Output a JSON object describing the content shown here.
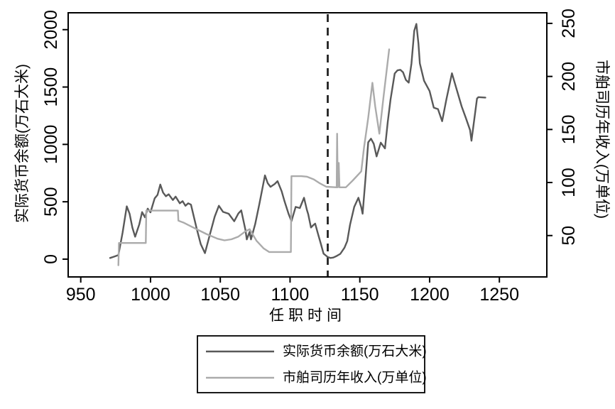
{
  "figure": {
    "background": "#ffffff"
  },
  "chart_data": {
    "type": "line",
    "title": "",
    "x_axis": {
      "label": "任职时间",
      "ticks": [
        950,
        1000,
        1050,
        1100,
        1150,
        1200,
        1250
      ],
      "range": [
        941,
        1284
      ]
    },
    "y_left": {
      "label": "实际货币余额(万石大米)",
      "ticks": [
        0,
        500,
        1000,
        1500,
        2000
      ],
      "range": [
        -155,
        2147
      ]
    },
    "y_right": {
      "label": "市舶司历年收入(万单位)",
      "ticks": [
        50,
        100,
        150,
        200,
        250
      ],
      "range": [
        11,
        260
      ]
    },
    "reference_line": {
      "x": 1127,
      "style": "dashed",
      "color": "#222222"
    },
    "grid": "off",
    "legend_position": "bottom",
    "series": [
      {
        "name": "实际货币余额(万石大米)",
        "axis": "left",
        "color": "#595959",
        "points": [
          [
            971,
            10
          ],
          [
            974,
            22
          ],
          [
            977,
            35
          ],
          [
            980,
            230
          ],
          [
            983,
            460
          ],
          [
            985,
            395
          ],
          [
            987,
            275
          ],
          [
            989,
            195
          ],
          [
            992,
            305
          ],
          [
            994,
            410
          ],
          [
            996,
            365
          ],
          [
            998,
            440
          ],
          [
            1000,
            408
          ],
          [
            1003,
            530
          ],
          [
            1005,
            560
          ],
          [
            1007,
            650
          ],
          [
            1009,
            580
          ],
          [
            1011,
            548
          ],
          [
            1013,
            565
          ],
          [
            1016,
            515
          ],
          [
            1018,
            545
          ],
          [
            1021,
            487
          ],
          [
            1023,
            505
          ],
          [
            1025,
            465
          ],
          [
            1027,
            487
          ],
          [
            1029,
            475
          ],
          [
            1033,
            270
          ],
          [
            1036,
            130
          ],
          [
            1039,
            52
          ],
          [
            1043,
            235
          ],
          [
            1046,
            370
          ],
          [
            1049,
            465
          ],
          [
            1052,
            412
          ],
          [
            1056,
            396
          ],
          [
            1060,
            330
          ],
          [
            1063,
            398
          ],
          [
            1065,
            425
          ],
          [
            1068,
            255
          ],
          [
            1069,
            172
          ],
          [
            1071,
            238
          ],
          [
            1072,
            172
          ],
          [
            1075,
            305
          ],
          [
            1078,
            480
          ],
          [
            1082,
            730
          ],
          [
            1084,
            662
          ],
          [
            1086,
            630
          ],
          [
            1089,
            655
          ],
          [
            1091,
            680
          ],
          [
            1094,
            592
          ],
          [
            1096,
            505
          ],
          [
            1099,
            392
          ],
          [
            1101,
            330
          ],
          [
            1104,
            455
          ],
          [
            1107,
            445
          ],
          [
            1110,
            535
          ],
          [
            1112,
            432
          ],
          [
            1113,
            392
          ],
          [
            1115,
            276
          ],
          [
            1117,
            300
          ],
          [
            1118,
            310
          ],
          [
            1120,
            222
          ],
          [
            1122,
            136
          ],
          [
            1124,
            48
          ],
          [
            1127,
            18
          ],
          [
            1129,
            10
          ],
          [
            1131,
            14
          ],
          [
            1133,
            25
          ],
          [
            1136,
            46
          ],
          [
            1139,
            100
          ],
          [
            1141,
            158
          ],
          [
            1143,
            300
          ],
          [
            1146,
            455
          ],
          [
            1149,
            535
          ],
          [
            1151,
            452
          ],
          [
            1152,
            396
          ],
          [
            1154,
            690
          ],
          [
            1156,
            1018
          ],
          [
            1158,
            1050
          ],
          [
            1160,
            1005
          ],
          [
            1162,
            895
          ],
          [
            1165,
            1015
          ],
          [
            1168,
            965
          ],
          [
            1170,
            1195
          ],
          [
            1172,
            1390
          ],
          [
            1175,
            1618
          ],
          [
            1177,
            1645
          ],
          [
            1179,
            1650
          ],
          [
            1181,
            1628
          ],
          [
            1183,
            1562
          ],
          [
            1185,
            1538
          ],
          [
            1187,
            1705
          ],
          [
            1189,
            1990
          ],
          [
            1190.5,
            2050
          ],
          [
            1192,
            1880
          ],
          [
            1193,
            1705
          ],
          [
            1196,
            1555
          ],
          [
            1200,
            1465
          ],
          [
            1203,
            1320
          ],
          [
            1206,
            1308
          ],
          [
            1209,
            1202
          ],
          [
            1212,
            1390
          ],
          [
            1216,
            1620
          ],
          [
            1219,
            1495
          ],
          [
            1223,
            1330
          ],
          [
            1226,
            1230
          ],
          [
            1229,
            1125
          ],
          [
            1230,
            1032
          ],
          [
            1234,
            1400
          ],
          [
            1235,
            1412
          ],
          [
            1240,
            1408
          ]
        ]
      },
      {
        "name": "市舶司历年收入(万单位)",
        "axis": "right",
        "color": "#ababab",
        "points": [
          [
            977,
            22
          ],
          [
            977.4,
            43
          ],
          [
            996.6,
            43
          ],
          [
            997,
            73.5
          ],
          [
            1019.6,
            73.5
          ],
          [
            1020,
            64
          ],
          [
            1024,
            62
          ],
          [
            1030,
            58
          ],
          [
            1040,
            51.5
          ],
          [
            1048,
            47
          ],
          [
            1053,
            45.5
          ],
          [
            1058,
            46.5
          ],
          [
            1063,
            49
          ],
          [
            1068,
            54
          ],
          [
            1071,
            56
          ],
          [
            1076,
            45
          ],
          [
            1081,
            38
          ],
          [
            1085,
            34.5
          ],
          [
            1100.6,
            34.5
          ],
          [
            1101,
            106
          ],
          [
            1108,
            106
          ],
          [
            1112,
            105.5
          ],
          [
            1117,
            103
          ],
          [
            1121,
            99.5
          ],
          [
            1126,
            96
          ],
          [
            1133.4,
            95.5
          ],
          [
            1133.7,
            146
          ],
          [
            1134.2,
            95.5
          ],
          [
            1134.9,
            118.5
          ],
          [
            1135.4,
            95.5
          ],
          [
            1140,
            95.5
          ],
          [
            1145,
            102
          ],
          [
            1151,
            110.5
          ],
          [
            1153,
            133
          ],
          [
            1156,
            161
          ],
          [
            1159,
            194
          ],
          [
            1161,
            172
          ],
          [
            1164,
            146
          ],
          [
            1167,
            181
          ],
          [
            1171,
            225.5
          ]
        ]
      }
    ],
    "legend": {
      "entries": [
        {
          "label": "实际货币余额(万石大米)",
          "color": "#595959"
        },
        {
          "label": "市舶司历年收入(万单位)",
          "color": "#ababab"
        }
      ]
    }
  }
}
